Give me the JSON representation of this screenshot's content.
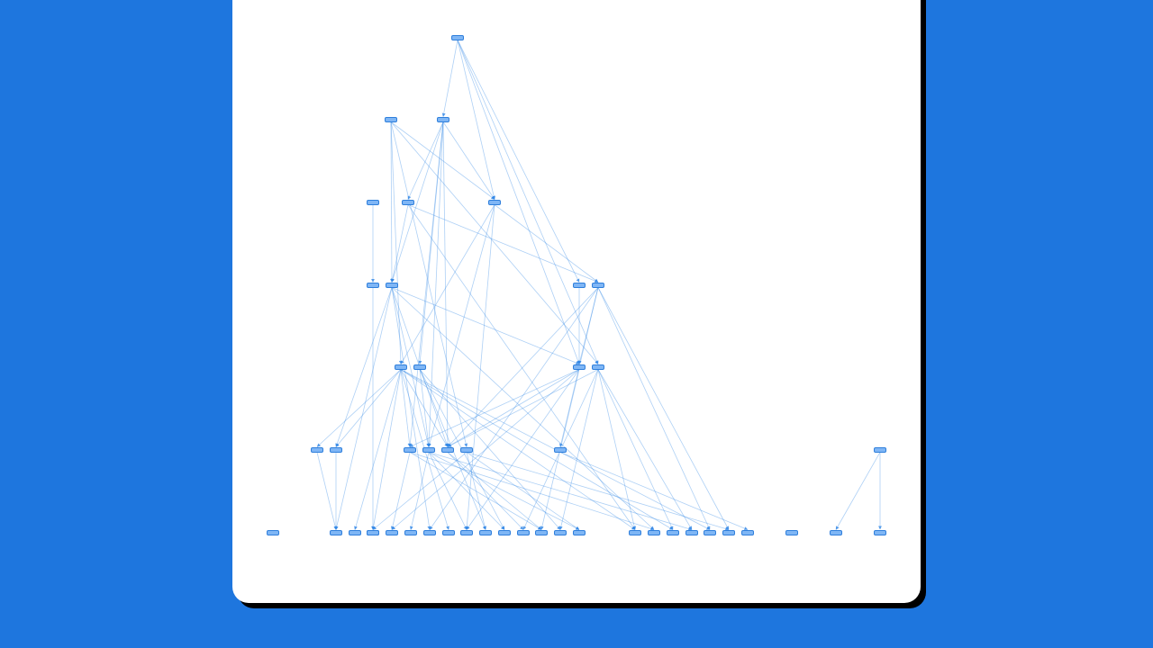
{
  "colors": {
    "background": "#1e76de",
    "canvas": "#ffffff",
    "node_fill": "#7fb6f5",
    "node_stroke": "#2f7fdc",
    "edge": "#3d8fe8"
  },
  "graph": {
    "nodes": [
      {
        "id": "n0",
        "label": ""
      },
      {
        "id": "n1",
        "label": ""
      },
      {
        "id": "n2",
        "label": ""
      },
      {
        "id": "n3",
        "label": ""
      },
      {
        "id": "n4",
        "label": ""
      },
      {
        "id": "n5",
        "label": ""
      },
      {
        "id": "n6",
        "label": ""
      },
      {
        "id": "n7",
        "label": ""
      },
      {
        "id": "n8",
        "label": ""
      },
      {
        "id": "n9",
        "label": ""
      },
      {
        "id": "n10",
        "label": ""
      },
      {
        "id": "n11",
        "label": ""
      },
      {
        "id": "n12",
        "label": ""
      },
      {
        "id": "n13",
        "label": ""
      },
      {
        "id": "n14",
        "label": ""
      },
      {
        "id": "n15",
        "label": ""
      },
      {
        "id": "n16",
        "label": ""
      },
      {
        "id": "n17",
        "label": ""
      },
      {
        "id": "n18",
        "label": ""
      },
      {
        "id": "n19",
        "label": ""
      },
      {
        "id": "n20",
        "label": ""
      },
      {
        "id": "n21",
        "label": ""
      },
      {
        "id": "b0",
        "label": ""
      },
      {
        "id": "b1",
        "label": ""
      },
      {
        "id": "b2",
        "label": ""
      },
      {
        "id": "b3",
        "label": ""
      },
      {
        "id": "b4",
        "label": ""
      },
      {
        "id": "b5",
        "label": ""
      },
      {
        "id": "b6",
        "label": ""
      },
      {
        "id": "b7",
        "label": ""
      },
      {
        "id": "b8",
        "label": ""
      },
      {
        "id": "b9",
        "label": ""
      },
      {
        "id": "b10",
        "label": ""
      },
      {
        "id": "b11",
        "label": ""
      },
      {
        "id": "b12",
        "label": ""
      },
      {
        "id": "b13",
        "label": ""
      },
      {
        "id": "b14",
        "label": ""
      },
      {
        "id": "b15",
        "label": ""
      },
      {
        "id": "b16",
        "label": ""
      },
      {
        "id": "b17",
        "label": ""
      },
      {
        "id": "b18",
        "label": ""
      },
      {
        "id": "b19",
        "label": ""
      },
      {
        "id": "b20",
        "label": ""
      },
      {
        "id": "b21",
        "label": ""
      },
      {
        "id": "b22",
        "label": ""
      },
      {
        "id": "b23",
        "label": ""
      },
      {
        "id": "b24",
        "label": ""
      }
    ],
    "edges": [
      [
        "n0",
        "n2"
      ],
      [
        "n0",
        "n5"
      ],
      [
        "n0",
        "n8"
      ],
      [
        "n0",
        "n11"
      ],
      [
        "n0",
        "n13"
      ],
      [
        "n1",
        "n5"
      ],
      [
        "n1",
        "n7"
      ],
      [
        "n1",
        "n10"
      ],
      [
        "n1",
        "n13"
      ],
      [
        "n1",
        "n19"
      ],
      [
        "n2",
        "n4"
      ],
      [
        "n2",
        "n5"
      ],
      [
        "n2",
        "n7"
      ],
      [
        "n2",
        "n12"
      ],
      [
        "n2",
        "n16"
      ],
      [
        "n2",
        "n17"
      ],
      [
        "n2",
        "n18"
      ],
      [
        "n3",
        "n6"
      ],
      [
        "n4",
        "n7"
      ],
      [
        "n4",
        "n9"
      ],
      [
        "n4",
        "b16"
      ],
      [
        "n5",
        "n9"
      ],
      [
        "n5",
        "n10"
      ],
      [
        "n5",
        "n17"
      ],
      [
        "n5",
        "b9"
      ],
      [
        "n6",
        "b6"
      ],
      [
        "n7",
        "n11"
      ],
      [
        "n7",
        "n15"
      ],
      [
        "n7",
        "n17"
      ],
      [
        "n7",
        "n18"
      ],
      [
        "n7",
        "b1"
      ],
      [
        "n7",
        "b7"
      ],
      [
        "n7",
        "b17"
      ],
      [
        "n8",
        "n11"
      ],
      [
        "n9",
        "n11"
      ],
      [
        "n9",
        "n21"
      ],
      [
        "n9",
        "n18"
      ],
      [
        "n9",
        "b7"
      ],
      [
        "n9",
        "b20"
      ],
      [
        "n9",
        "b21"
      ],
      [
        "n10",
        "n14"
      ],
      [
        "n10",
        "n15"
      ],
      [
        "n10",
        "n16"
      ],
      [
        "n10",
        "n18"
      ],
      [
        "n10",
        "b2"
      ],
      [
        "n10",
        "b3"
      ],
      [
        "n10",
        "b8"
      ],
      [
        "n10",
        "b16"
      ],
      [
        "n10",
        "b18"
      ],
      [
        "n10",
        "b20"
      ],
      [
        "n11",
        "n16"
      ],
      [
        "n11",
        "n18"
      ],
      [
        "n11",
        "b13"
      ],
      [
        "n11",
        "b9"
      ],
      [
        "n11",
        "b4"
      ],
      [
        "n12",
        "n17"
      ],
      [
        "n12",
        "b10"
      ],
      [
        "n12",
        "b11"
      ],
      [
        "n12",
        "b14"
      ],
      [
        "n13",
        "n18"
      ],
      [
        "n13",
        "b12"
      ],
      [
        "n13",
        "b14"
      ],
      [
        "n13",
        "b16"
      ],
      [
        "n13",
        "b18"
      ],
      [
        "n13",
        "b19"
      ],
      [
        "n14",
        "b1"
      ],
      [
        "n15",
        "b1"
      ],
      [
        "n16",
        "b4"
      ],
      [
        "n16",
        "b13"
      ],
      [
        "n16",
        "b17"
      ],
      [
        "n17",
        "b5"
      ],
      [
        "n17",
        "b9"
      ],
      [
        "n17",
        "b15"
      ],
      [
        "n17",
        "b19"
      ],
      [
        "n17",
        "b11"
      ],
      [
        "n18",
        "b13"
      ],
      [
        "n18",
        "b12"
      ],
      [
        "n19",
        "b6"
      ],
      [
        "n19",
        "b10"
      ],
      [
        "n19",
        "b15"
      ],
      [
        "n19",
        "b21"
      ],
      [
        "n20",
        "b24"
      ],
      [
        "n21",
        "b22"
      ]
    ]
  }
}
